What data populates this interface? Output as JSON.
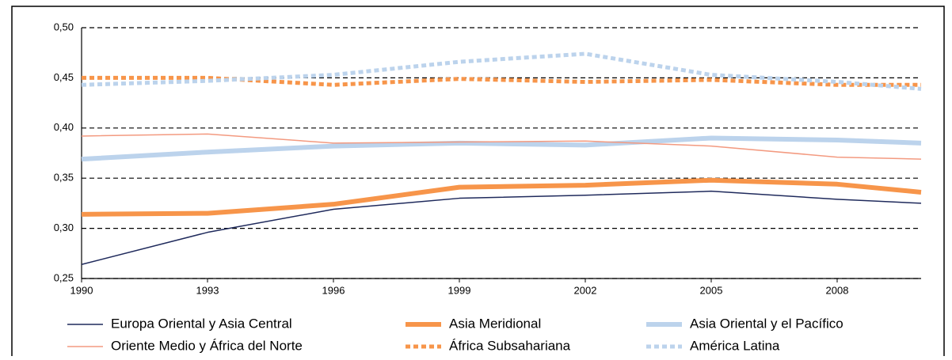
{
  "chart_data": {
    "type": "line",
    "x": [
      1990,
      1993,
      1996,
      1999,
      2002,
      2005,
      2008,
      2010
    ],
    "xlim": [
      1990,
      2010
    ],
    "xticks": [
      1990,
      1993,
      1996,
      1999,
      2002,
      2005,
      2008
    ],
    "ylim": [
      0.25,
      0.5
    ],
    "yticks": [
      {
        "value": 0.25,
        "label": "0,25"
      },
      {
        "value": 0.3,
        "label": "0,30"
      },
      {
        "value": 0.35,
        "label": "0,35"
      },
      {
        "value": 0.4,
        "label": "0,40"
      },
      {
        "value": 0.45,
        "label": "0,45"
      },
      {
        "value": 0.5,
        "label": "0,50"
      }
    ],
    "grid": true,
    "legend": "bottom",
    "series": [
      {
        "name": "Europa Oriental y Asia Central",
        "color": "#1f2a5c",
        "width": 1.5,
        "style": "solid",
        "values": [
          0.264,
          0.296,
          0.319,
          0.33,
          0.333,
          0.337,
          0.329,
          0.325
        ]
      },
      {
        "name": "Asia Meridional",
        "color": "#f7954a",
        "width": 6,
        "style": "solid",
        "values": [
          0.314,
          0.315,
          0.324,
          0.341,
          0.343,
          0.348,
          0.344,
          0.336
        ]
      },
      {
        "name": "Asia Oriental y el Pacífico",
        "color": "#bcd3ec",
        "width": 6,
        "style": "solid",
        "values": [
          0.369,
          0.376,
          0.382,
          0.385,
          0.383,
          0.39,
          0.388,
          0.385
        ]
      },
      {
        "name": "Oriente Medio y África del Norte",
        "color": "#f39a80",
        "width": 1.5,
        "style": "solid",
        "values": [
          0.392,
          0.394,
          0.385,
          0.386,
          0.387,
          0.382,
          0.371,
          0.369
        ]
      },
      {
        "name": "África Subsahariana",
        "color": "#f7954a",
        "width": 5,
        "style": "dotted",
        "values": [
          0.45,
          0.45,
          0.443,
          0.449,
          0.446,
          0.448,
          0.443,
          0.443
        ]
      },
      {
        "name": "América Latina",
        "color": "#bcd3ec",
        "width": 5,
        "style": "dotted",
        "values": [
          0.443,
          0.447,
          0.453,
          0.466,
          0.474,
          0.453,
          0.446,
          0.439
        ]
      }
    ]
  }
}
